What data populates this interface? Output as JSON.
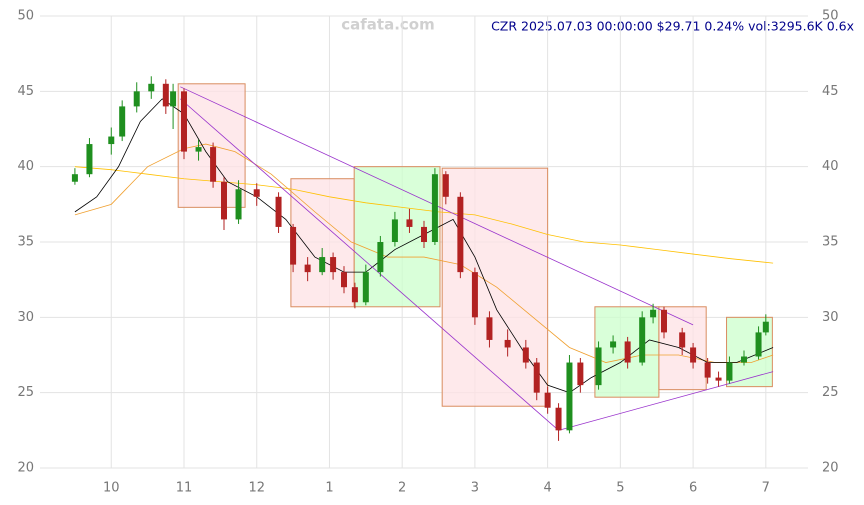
{
  "chart_data": {
    "type": "candlestick",
    "title": "CZR 2025.07.03 00:00:00 $29.71 0.24% vol:3295.6K 0.6x",
    "watermark": "cafata.com",
    "xlim": [
      9.02,
      19.58
    ],
    "ylim": [
      20,
      50
    ],
    "xticks": [
      10,
      11,
      12,
      {
        "value": 13,
        "label": "1"
      },
      {
        "value": 14,
        "label": "2"
      },
      {
        "value": 15,
        "label": "3"
      },
      {
        "value": 16,
        "label": "4"
      },
      {
        "value": 17,
        "label": "5"
      },
      {
        "value": 18,
        "label": "6"
      },
      {
        "value": 19,
        "label": "7"
      }
    ],
    "yticks": [
      20,
      25,
      30,
      35,
      40,
      45,
      50
    ],
    "grid": true,
    "up_color": "#1f8f1f",
    "down_color": "#b22222",
    "x": [
      9.5,
      9.7,
      10.0,
      10.15,
      10.35,
      10.55,
      10.75,
      10.85,
      11.0,
      11.2,
      11.4,
      11.55,
      11.75,
      12.0,
      12.3,
      12.5,
      12.7,
      12.9,
      13.05,
      13.2,
      13.35,
      13.5,
      13.7,
      13.9,
      14.1,
      14.3,
      14.45,
      14.6,
      14.8,
      15.0,
      15.2,
      15.45,
      15.7,
      15.85,
      16.0,
      16.15,
      16.3,
      16.45,
      16.7,
      16.9,
      17.1,
      17.3,
      17.45,
      17.6,
      17.85,
      18.0,
      18.2,
      18.35,
      18.5,
      18.7,
      18.9,
      19.0
    ],
    "open": [
      39.0,
      39.5,
      41.5,
      42,
      44,
      45,
      45.5,
      44,
      45,
      41,
      41.3,
      39,
      36.5,
      38.5,
      38,
      36,
      33.5,
      33,
      34,
      33,
      32,
      31,
      33,
      35,
      36.5,
      36,
      35,
      39.5,
      38,
      33,
      30,
      28.5,
      28,
      27,
      25,
      24,
      22.5,
      27,
      25.5,
      28,
      28.4,
      27,
      30,
      30.5,
      29,
      28,
      27,
      26,
      25.8,
      27,
      27.4,
      29
    ],
    "high": [
      39.9,
      41.9,
      42.6,
      44.4,
      45.6,
      46,
      45.8,
      45.5,
      45.2,
      41.8,
      41.6,
      39.3,
      39.1,
      38.9,
      38.3,
      36.2,
      34,
      34.6,
      34.3,
      33.4,
      32.3,
      33.5,
      35.4,
      37,
      37.2,
      36.4,
      39.9,
      39.7,
      38.3,
      33.3,
      30.4,
      29.2,
      28.5,
      27.3,
      25.4,
      24.3,
      27.5,
      27.3,
      28.4,
      28.8,
      28.7,
      30.4,
      30.9,
      30.7,
      29.3,
      28.3,
      27.3,
      26.4,
      27.4,
      27.8,
      29.4,
      30.2
    ],
    "low": [
      38.8,
      39.3,
      40.8,
      41.7,
      43.6,
      44.5,
      43.5,
      42.5,
      40.5,
      40.4,
      38.6,
      35.8,
      36.2,
      37.4,
      35.6,
      33,
      32.4,
      32.8,
      32.5,
      31.6,
      30.6,
      30.8,
      32.7,
      34.7,
      35.6,
      34.6,
      34.8,
      37.5,
      32.6,
      29.5,
      28,
      27.4,
      26.6,
      24.5,
      23.6,
      21.8,
      22.3,
      25,
      25.2,
      27.6,
      26.6,
      26.8,
      29.6,
      28.6,
      27.5,
      26.6,
      25.6,
      25.4,
      25.6,
      26.8,
      27.2,
      28.8
    ],
    "close": [
      39.5,
      41.5,
      42,
      44,
      45,
      45.5,
      44,
      45,
      41,
      41.3,
      39,
      36.5,
      38.5,
      38,
      36,
      33.5,
      33,
      34,
      33,
      32,
      31,
      33,
      35,
      36.5,
      36,
      35,
      39.5,
      38,
      33,
      30,
      28.5,
      28,
      27,
      25,
      24,
      22.5,
      27,
      25.5,
      28,
      28.4,
      27,
      30,
      30.5,
      29,
      28,
      27,
      26,
      25.8,
      27,
      27.4,
      29,
      29.71
    ],
    "boxes": [
      {
        "color": "#fde2e4",
        "x": [
          10.92,
          11.84
        ],
        "y": [
          37.3,
          45.5
        ]
      },
      {
        "color": "#fde2e4",
        "x": [
          12.47,
          13.34
        ],
        "y": [
          30.7,
          39.2
        ]
      },
      {
        "color": "#ccffcc",
        "x": [
          13.34,
          14.52
        ],
        "y": [
          30.7,
          40
        ]
      },
      {
        "color": "#fde2e4",
        "x": [
          14.55,
          16.0
        ],
        "y": [
          24.1,
          39.9
        ]
      },
      {
        "color": "#ccffcc",
        "x": [
          16.65,
          17.53
        ],
        "y": [
          24.7,
          30.7
        ]
      },
      {
        "color": "#fde2e4",
        "x": [
          17.53,
          18.18
        ],
        "y": [
          25.2,
          30.7
        ]
      },
      {
        "color": "#ccffcc",
        "x": [
          18.46,
          19.09
        ],
        "y": [
          25.4,
          30
        ]
      }
    ],
    "lines": [
      {
        "color": "#ffc000",
        "x": [
          9.5,
          10.0,
          10.5,
          11.0,
          11.5,
          12.0,
          12.5,
          13.0,
          13.5,
          14.0,
          14.5,
          15.0,
          15.5,
          16.0,
          16.5,
          17.0,
          17.5,
          18.0,
          18.5,
          19.1
        ],
        "values": [
          40,
          39.8,
          39.5,
          39.2,
          39,
          38.8,
          38.5,
          38,
          37.6,
          37.3,
          37,
          36.8,
          36.2,
          35.5,
          35,
          34.8,
          34.5,
          34.2,
          33.9,
          33.6
        ]
      },
      {
        "color": "#f0a030",
        "x": [
          9.5,
          10.0,
          10.5,
          11.0,
          11.3,
          11.7,
          12.2,
          12.8,
          13.3,
          13.8,
          14.3,
          14.8,
          15.3,
          15.8,
          16.3,
          16.8,
          17.3,
          17.8,
          18.3,
          18.8,
          19.1
        ],
        "values": [
          36.8,
          37.5,
          40,
          41.2,
          41.5,
          41,
          39.5,
          37,
          35,
          34,
          34,
          33.5,
          32,
          30,
          28,
          27,
          27.5,
          27.5,
          27,
          27,
          27.5
        ]
      },
      {
        "color": "#000000",
        "x": [
          9.5,
          9.8,
          10.1,
          10.4,
          10.7,
          11.0,
          11.3,
          11.6,
          12.0,
          12.4,
          12.8,
          13.2,
          13.5,
          13.9,
          14.3,
          14.7,
          15.0,
          15.3,
          15.7,
          16.0,
          16.3,
          16.6,
          17.0,
          17.4,
          17.8,
          18.2,
          18.6,
          19.1
        ],
        "values": [
          37,
          38,
          40,
          43,
          44.5,
          43.5,
          41,
          39,
          38,
          36.5,
          34,
          33,
          33,
          34.5,
          35.5,
          36.5,
          34,
          30.5,
          27.5,
          25.5,
          25,
          26,
          27,
          28.5,
          28,
          27,
          27,
          28
        ]
      }
    ],
    "trend_lines": [
      {
        "color": "#9932cc",
        "x": [
          10.95,
          18.0
        ],
        "y": [
          45.3,
          29.5
        ]
      },
      {
        "color": "#9932cc",
        "x": [
          10.95,
          16.15
        ],
        "y": [
          44.5,
          22.5
        ]
      },
      {
        "color": "#9932cc",
        "x": [
          16.15,
          19.1
        ],
        "y": [
          22.5,
          26.4
        ]
      }
    ]
  }
}
